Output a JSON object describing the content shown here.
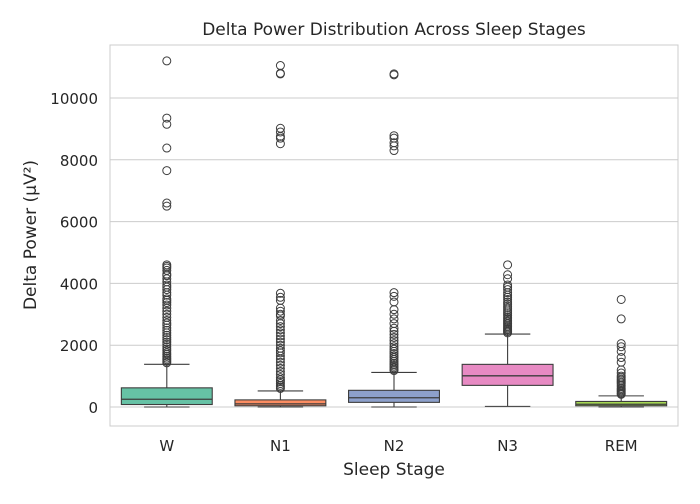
{
  "chart_data": {
    "type": "box",
    "title": "Delta Power Distribution Across Sleep Stages",
    "xlabel": "Sleep Stage",
    "ylabel": "Delta Power (μV²)",
    "ylim": [
      -600,
      11700
    ],
    "yticks": [
      0,
      2000,
      4000,
      6000,
      8000,
      10000
    ],
    "grid": true,
    "categories": [
      "W",
      "N1",
      "N2",
      "N3",
      "REM"
    ],
    "series": [
      {
        "category": "W",
        "color": "#66c2a5",
        "whisker_low": 0,
        "q1": 80,
        "median": 250,
        "q3": 620,
        "whisker_high": 1380,
        "outliers": [
          11200,
          9350,
          9150,
          8380,
          7650,
          6600,
          6500,
          4600,
          4550,
          4500,
          4420,
          4300,
          4250,
          4150,
          4050,
          3950,
          3880,
          3800,
          3700,
          3620,
          3500,
          3450,
          3380,
          3300,
          3200,
          3100,
          3000,
          2900,
          2800,
          2720,
          2650,
          2560,
          2480,
          2400,
          2320,
          2250,
          2180,
          2100,
          2030,
          1950,
          1880,
          1820,
          1750,
          1700,
          1640,
          1580,
          1530,
          1480,
          1430
        ]
      },
      {
        "category": "N1",
        "color": "#fc8d62",
        "whisker_low": 0,
        "q1": 40,
        "median": 100,
        "q3": 230,
        "whisker_high": 520,
        "outliers": [
          11050,
          10800,
          10780,
          9020,
          8900,
          8760,
          8700,
          8520,
          3680,
          3550,
          3450,
          3200,
          3100,
          3000,
          2950,
          2800,
          2700,
          2600,
          2500,
          2400,
          2300,
          2200,
          2100,
          2000,
          1900,
          1820,
          1750,
          1650,
          1550,
          1450,
          1350,
          1250,
          1150,
          1050,
          950,
          880,
          820,
          760,
          700,
          650,
          600
        ]
      },
      {
        "category": "N2",
        "color": "#8da0cb",
        "whisker_low": 0,
        "q1": 150,
        "median": 300,
        "q3": 540,
        "whisker_high": 1120,
        "outliers": [
          10780,
          10750,
          8780,
          8700,
          8550,
          8450,
          8300,
          3700,
          3580,
          3400,
          3150,
          3000,
          2850,
          2700,
          2550,
          2450,
          2350,
          2250,
          2150,
          2050,
          1950,
          1870,
          1800,
          1730,
          1660,
          1600,
          1540,
          1480,
          1420,
          1370,
          1320,
          1270,
          1220,
          1180
        ]
      },
      {
        "category": "N3",
        "color": "#e78ac3",
        "whisker_low": 20,
        "q1": 700,
        "median": 1010,
        "q3": 1380,
        "whisker_high": 2360,
        "outliers": [
          4600,
          4280,
          4150,
          3950,
          3880,
          3800,
          3700,
          3620,
          3550,
          3480,
          3400,
          3330,
          3260,
          3200,
          3140,
          3080,
          3020,
          2960,
          2900,
          2850,
          2800,
          2750,
          2700,
          2650,
          2600,
          2560,
          2520,
          2480,
          2440,
          2400
        ]
      },
      {
        "category": "REM",
        "color": "#a6d854",
        "whisker_low": 0,
        "q1": 40,
        "median": 90,
        "q3": 180,
        "whisker_high": 360,
        "outliers": [
          3480,
          2850,
          2050,
          1950,
          1800,
          1600,
          1450,
          1200,
          1100,
          1000,
          950,
          900,
          850,
          800,
          750,
          700,
          650,
          600,
          560,
          520,
          480,
          440,
          410
        ]
      }
    ]
  }
}
